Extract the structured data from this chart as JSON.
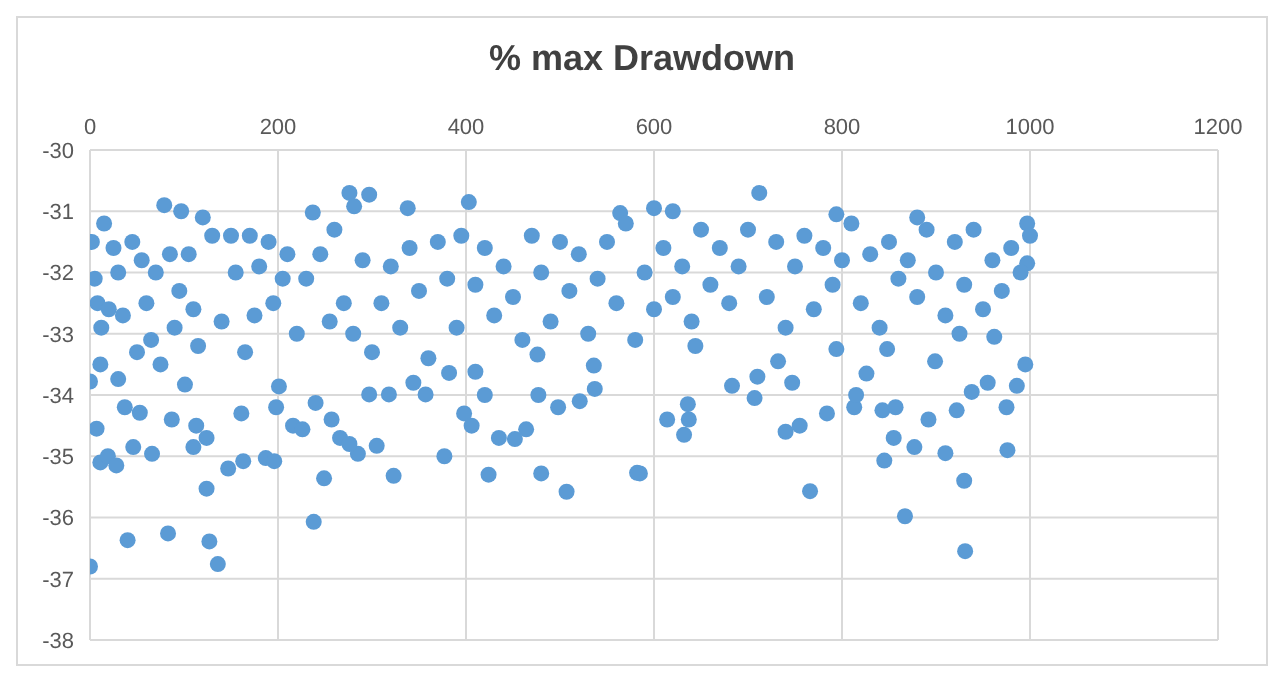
{
  "chart_data": {
    "type": "scatter",
    "title": "% max Drawdown",
    "xlim": [
      0,
      1200
    ],
    "xticks": [
      0,
      200,
      400,
      600,
      800,
      1000,
      1200
    ],
    "ylim": [
      -38,
      -30
    ],
    "yticks": [
      -38,
      -37,
      -36,
      -35,
      -34,
      -33,
      -32,
      -31,
      -30
    ],
    "grid": true,
    "legend": false,
    "marker": "circle",
    "series": [
      {
        "color": "#5b9bd5",
        "x": [
          0,
          40,
          83,
          124,
          127,
          136,
          238,
          249,
          323,
          377,
          305,
          285,
          424,
          480,
          507,
          585,
          582,
          766,
          867,
          931,
          930,
          845,
          877,
          910,
          976,
          855,
          740,
          755,
          632,
          614,
          637,
          636,
          784,
          813,
          843,
          857,
          892,
          922,
          975,
          712,
          620,
          600,
          880,
          794,
          997,
          997,
          995,
          986,
          955,
          899,
          848,
          794,
          732,
          644,
          580,
          683,
          710,
          707,
          747,
          826,
          815,
          938,
          962,
          925,
          79,
          97,
          120,
          276,
          297,
          281,
          338,
          403,
          237,
          564,
          7,
          11,
          19,
          28,
          46,
          66,
          53,
          37,
          87,
          101,
          110,
          113,
          124,
          147,
          163,
          187,
          196,
          161,
          198,
          201,
          216,
          226,
          240,
          257,
          266,
          276,
          297,
          318,
          344,
          357,
          382,
          398,
          406,
          410,
          420,
          435,
          452,
          464,
          477,
          476,
          498,
          521,
          537,
          536,
          0,
          11,
          30,
          2,
          5,
          8,
          12,
          15,
          20,
          25,
          30,
          35,
          45,
          50,
          55,
          60,
          65,
          70,
          75,
          85,
          90,
          95,
          105,
          110,
          115,
          130,
          140,
          150,
          155,
          165,
          170,
          175,
          180,
          190,
          195,
          205,
          210,
          220,
          230,
          245,
          255,
          260,
          270,
          280,
          290,
          300,
          310,
          320,
          330,
          340,
          350,
          360,
          370,
          380,
          390,
          395,
          410,
          420,
          430,
          440,
          450,
          460,
          470,
          480,
          490,
          500,
          510,
          520,
          530,
          540,
          550,
          560,
          570,
          590,
          600,
          610,
          620,
          630,
          640,
          650,
          660,
          670,
          680,
          690,
          700,
          720,
          730,
          740,
          750,
          760,
          770,
          780,
          790,
          800,
          810,
          820,
          830,
          840,
          850,
          860,
          870,
          880,
          890,
          900,
          910,
          920,
          930,
          940,
          950,
          960,
          970,
          980,
          990,
          1000
        ],
        "values": [
          -36.8,
          -36.37,
          -36.26,
          -35.53,
          -36.39,
          -36.76,
          -36.07,
          -35.36,
          -35.32,
          -35.0,
          -34.83,
          -34.96,
          -35.3,
          -35.28,
          -35.58,
          -35.28,
          -35.27,
          -35.57,
          -35.98,
          -36.55,
          -35.4,
          -35.07,
          -34.85,
          -34.95,
          -34.9,
          -34.7,
          -34.6,
          -34.5,
          -34.65,
          -34.4,
          -34.4,
          -34.15,
          -34.3,
          -34.2,
          -34.25,
          -34.2,
          -34.4,
          -34.25,
          -34.2,
          -30.7,
          -31.0,
          -30.95,
          -31.1,
          -31.05,
          -31.2,
          -31.85,
          -33.5,
          -33.85,
          -33.8,
          -33.45,
          -33.25,
          -33.25,
          -33.45,
          -33.2,
          -33.1,
          -33.85,
          -33.7,
          -34.05,
          -33.8,
          -33.65,
          -34.0,
          -33.95,
          -33.05,
          -33.0,
          -30.9,
          -31.0,
          -31.1,
          -30.7,
          -30.73,
          -30.92,
          -30.95,
          -30.85,
          -31.02,
          -31.03,
          -34.55,
          -35.1,
          -35.0,
          -35.15,
          -34.85,
          -34.96,
          -34.29,
          -34.2,
          -34.4,
          -33.83,
          -34.85,
          -34.5,
          -34.7,
          -35.2,
          -35.08,
          -35.03,
          -35.08,
          -34.3,
          -34.2,
          -33.86,
          -34.5,
          -34.56,
          -34.13,
          -34.4,
          -34.7,
          -34.8,
          -33.99,
          -33.99,
          -33.8,
          -33.99,
          -33.64,
          -34.3,
          -34.5,
          -33.62,
          -34.0,
          -34.7,
          -34.72,
          -34.56,
          -34.0,
          -33.34,
          -34.2,
          -34.1,
          -33.9,
          -33.52,
          -33.78,
          -33.5,
          -33.74,
          -31.5,
          -32.1,
          -32.5,
          -32.9,
          -31.2,
          -32.6,
          -31.6,
          -32.0,
          -32.7,
          -31.5,
          -33.3,
          -31.8,
          -32.5,
          -33.1,
          -32.0,
          -33.5,
          -31.7,
          -32.9,
          -32.3,
          -31.7,
          -32.6,
          -33.2,
          -31.4,
          -32.8,
          -31.4,
          -32.0,
          -33.3,
          -31.4,
          -32.7,
          -31.9,
          -31.5,
          -32.5,
          -32.1,
          -31.7,
          -33.0,
          -32.1,
          -31.7,
          -32.8,
          -31.3,
          -32.5,
          -33.0,
          -31.8,
          -33.3,
          -32.5,
          -31.9,
          -32.9,
          -31.6,
          -32.3,
          -33.4,
          -31.5,
          -32.1,
          -32.9,
          -31.4,
          -32.2,
          -31.6,
          -32.7,
          -31.9,
          -32.4,
          -33.1,
          -31.4,
          -32.0,
          -32.8,
          -31.5,
          -32.3,
          -31.7,
          -33.0,
          -32.1,
          -31.5,
          -32.5,
          -31.2,
          -32.0,
          -32.6,
          -31.6,
          -32.4,
          -31.9,
          -32.8,
          -31.3,
          -32.2,
          -31.6,
          -32.5,
          -31.9,
          -31.3,
          -32.4,
          -31.5,
          -32.9,
          -31.9,
          -31.4,
          -32.6,
          -31.6,
          -32.2,
          -31.8,
          -31.2,
          -32.5,
          -31.7,
          -32.9,
          -31.5,
          -32.1,
          -31.8,
          -32.4,
          -31.3,
          -32.0,
          -32.7,
          -31.5,
          -32.2,
          -31.3,
          -32.6,
          -31.8,
          -32.3,
          -31.6,
          -32.0,
          -31.4
        ]
      }
    ]
  }
}
